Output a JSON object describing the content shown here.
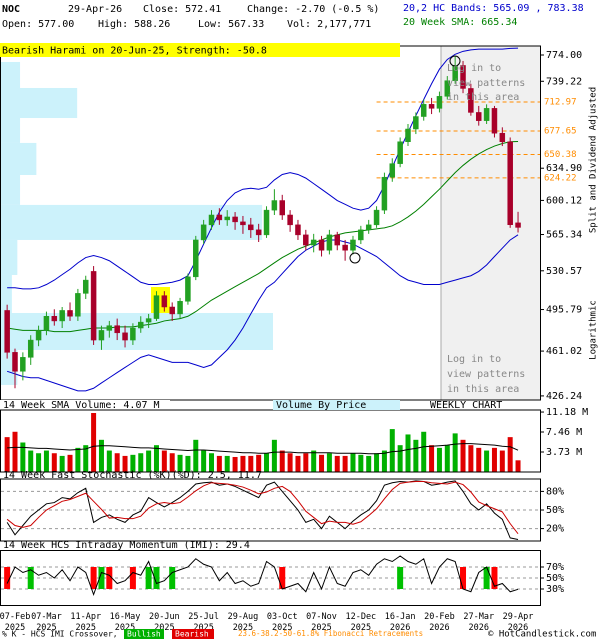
{
  "header": {
    "symbol": "NOC",
    "date": "29-Apr-26",
    "close": "Close: 572.41",
    "change": "Change: -2.70 (-0.5 %)",
    "bands": "20,2 HC Bands: 565.09 , 783.38",
    "open": "Open: 577.00",
    "high": "High: 588.26",
    "low": "Low: 567.33",
    "vol": "Vol: 2,177,771",
    "sma": "20 Week SMA: 665.34"
  },
  "footer": {
    "crossover": "% K - HCS IMI Crossover,",
    "bullish": "Bullish",
    "bearish": "Bearish",
    "fib": "23.6-38.2-50-61.8% Fibonacci Retracements",
    "copyright": "© HotCandlestick.com"
  },
  "chart_data": [
    {
      "type": "candlestick",
      "title": "Bearish Harami on 20-Jun-25, Strength: -50.8",
      "annotations": [
        [
          "Log in to",
          "view patterns",
          "in this area"
        ],
        [
          "Log in to",
          "view patterns",
          "in this area"
        ]
      ],
      "y_axis_labels": [
        "Split and Dividend Adjusted",
        "Logarithmic"
      ],
      "log": true,
      "ylim": [
        423.2,
        786.3
      ],
      "yticks": [
        {
          "value": 774,
          "label": "774.00"
        },
        {
          "value": 739.22,
          "label": "739.22"
        },
        {
          "value": 634.9,
          "label": "634.90"
        },
        {
          "value": 600.12,
          "label": "600.12"
        },
        {
          "value": 565.34,
          "label": "565.34"
        },
        {
          "value": 530.57,
          "label": "530.57"
        },
        {
          "value": 495.79,
          "label": "495.79"
        },
        {
          "value": 461.02,
          "label": "461.02"
        },
        {
          "value": 426.24,
          "label": "426.24"
        }
      ],
      "fib_levels": [
        712.97,
        677.65,
        650.38,
        624.22
      ],
      "fib_color": "#ff8c00",
      "categories": [
        null,
        "07-Feb 2025",
        null,
        null,
        null,
        "07-Mar 2025",
        null,
        null,
        null,
        null,
        "11-Apr 2025",
        null,
        null,
        null,
        null,
        "16-May 2025",
        null,
        null,
        null,
        null,
        "20-Jun 2025",
        null,
        null,
        null,
        null,
        "25-Jul 2025",
        null,
        null,
        null,
        null,
        "29-Aug 2025",
        null,
        null,
        null,
        null,
        "03-Oct 2025",
        null,
        null,
        null,
        null,
        "07-Nov 2025",
        null,
        null,
        null,
        null,
        "12-Dec 2025",
        null,
        null,
        null,
        null,
        "16-Jan 2026",
        null,
        null,
        null,
        null,
        "20-Feb 2026",
        null,
        null,
        null,
        null,
        "27-Mar 2026",
        null,
        null,
        null,
        null,
        "29-Apr 2026"
      ],
      "open": [
        495,
        460,
        445,
        456,
        470,
        478,
        490,
        486,
        495,
        490,
        510,
        530,
        470,
        478,
        482,
        476,
        470,
        480,
        485,
        488,
        508,
        498,
        492,
        503,
        525,
        560,
        575,
        585,
        580,
        583,
        578,
        575,
        570,
        565,
        590,
        600,
        585,
        575,
        565,
        555,
        560,
        550,
        565,
        555,
        550,
        560,
        570,
        575,
        590,
        625,
        640,
        665,
        680,
        695,
        710,
        705,
        720,
        740,
        760,
        730,
        700,
        690,
        705,
        675,
        665,
        577
      ],
      "high": [
        500,
        463,
        460,
        474,
        482,
        494,
        496,
        498,
        502,
        514,
        526,
        535,
        482,
        486,
        488,
        482,
        484,
        490,
        492,
        512,
        512,
        502,
        506,
        528,
        564,
        580,
        590,
        592,
        590,
        588,
        584,
        582,
        576,
        594,
        612,
        606,
        590,
        580,
        570,
        566,
        564,
        570,
        568,
        560,
        564,
        574,
        580,
        594,
        630,
        646,
        670,
        686,
        700,
        716,
        718,
        726,
        746,
        772,
        766,
        736,
        708,
        710,
        708,
        682,
        670,
        588.26
      ],
      "low": [
        455,
        432,
        438,
        450,
        465,
        474,
        482,
        480,
        486,
        486,
        505,
        466,
        462,
        472,
        470,
        464,
        466,
        476,
        480,
        486,
        494,
        486,
        488,
        500,
        522,
        556,
        570,
        575,
        574,
        570,
        566,
        562,
        558,
        562,
        585,
        580,
        568,
        560,
        550,
        548,
        544,
        546,
        550,
        540,
        546,
        556,
        566,
        572,
        586,
        620,
        636,
        660,
        674,
        690,
        698,
        700,
        716,
        736,
        724,
        696,
        684,
        686,
        670,
        660,
        572,
        567.33
      ],
      "close": [
        460,
        445,
        456,
        470,
        478,
        490,
        486,
        495,
        490,
        510,
        522,
        470,
        478,
        482,
        476,
        470,
        480,
        485,
        488,
        508,
        498,
        492,
        503,
        525,
        560,
        575,
        585,
        580,
        583,
        578,
        575,
        570,
        565,
        590,
        600,
        585,
        575,
        565,
        555,
        560,
        550,
        565,
        555,
        550,
        560,
        570,
        575,
        590,
        625,
        640,
        665,
        680,
        695,
        710,
        705,
        720,
        740,
        760,
        730,
        700,
        690,
        705,
        675,
        665,
        575.11,
        572.41
      ],
      "up_color": "#22a022",
      "down_color": "#a8002a",
      "series": [
        {
          "color": "#0000cc",
          "values": [
            515,
            515,
            514,
            514,
            515,
            518,
            522,
            527,
            532,
            538,
            543,
            545,
            543,
            540,
            535,
            530,
            525,
            520,
            518,
            518,
            519,
            520,
            522,
            526,
            540,
            556,
            572,
            588,
            600,
            608,
            612,
            613,
            612,
            614,
            622,
            628,
            630,
            628,
            624,
            618,
            612,
            606,
            600,
            596,
            592,
            590,
            592,
            600,
            616,
            636,
            656,
            676,
            696,
            716,
            736,
            755,
            768,
            775,
            779,
            781,
            782,
            782,
            782,
            782,
            783,
            783.38
          ]
        },
        {
          "color": "#0000cc",
          "values": [
            445,
            443,
            441,
            440,
            440,
            438,
            436,
            434,
            432,
            430,
            430,
            432,
            436,
            440,
            444,
            448,
            452,
            456,
            458,
            456,
            454,
            452,
            452,
            452,
            450,
            448,
            450,
            456,
            462,
            470,
            480,
            492,
            504,
            515,
            520,
            528,
            536,
            544,
            550,
            554,
            558,
            560,
            560,
            558,
            556,
            552,
            548,
            544,
            538,
            532,
            526,
            522,
            520,
            518,
            518,
            518,
            520,
            522,
            524,
            526,
            530,
            536,
            544,
            552,
            560,
            565.09
          ]
        },
        {
          "color": "#008000",
          "values": [
            480,
            479,
            478,
            478,
            478,
            478,
            477,
            477,
            477,
            478,
            479,
            480,
            480,
            480,
            481,
            481,
            481,
            482,
            483,
            484,
            486,
            487,
            488,
            490,
            494,
            499,
            504,
            508,
            512,
            516,
            520,
            524,
            528,
            533,
            538,
            543,
            547,
            551,
            554,
            557,
            560,
            563,
            565,
            567,
            568,
            569,
            570,
            571,
            572,
            574,
            578,
            583,
            589,
            596,
            604,
            612,
            621,
            630,
            638,
            645,
            651,
            656,
            660,
            663,
            665,
            665.34
          ]
        }
      ],
      "vbp_edges": [
        764.6,
        730.6,
        693.2,
        663.6,
        627.4,
        595.4,
        560,
        526.7,
        492.8,
        461.9,
        434.5
      ],
      "vbp_volumes": [
        7,
        28,
        7,
        13,
        7,
        96,
        6,
        4,
        100,
        6
      ],
      "vbp_color": "#ccf2fb"
    },
    {
      "type": "bar",
      "title": "14 Week SMA Volume: 4.07 M",
      "annotations": [
        "Volume By Price",
        "WEEKLY CHART"
      ],
      "ylim": [
        0,
        11.56
      ],
      "yticks": [
        {
          "value": 11.18,
          "label": "11.18 M"
        },
        {
          "value": 7.46,
          "label": "7.46 M"
        },
        {
          "value": 3.73,
          "label": "3.73 M"
        }
      ],
      "values": [
        6.5,
        7.5,
        5.5,
        4,
        3.5,
        4,
        3.5,
        3,
        3.2,
        4.5,
        5,
        11,
        6,
        4,
        3.5,
        3,
        3.2,
        3.5,
        4,
        5,
        4,
        3.5,
        3.2,
        3,
        6,
        4,
        3.5,
        3,
        3,
        2.8,
        3,
        3,
        3.2,
        3.5,
        6,
        4,
        3.5,
        3,
        3.5,
        4,
        3.2,
        3.5,
        3,
        3,
        3.5,
        3.2,
        3,
        3.5,
        4,
        8,
        5,
        7,
        6,
        7.5,
        5,
        4.5,
        5,
        7.2,
        6,
        5,
        4.5,
        4,
        4.5,
        4,
        6.5,
        2.177771
      ],
      "up_color": "#00b000",
      "down_color": "#e00000",
      "series": [
        {
          "color": "#000000",
          "values": [
            4.5,
            4.6,
            4.6,
            4.5,
            4.4,
            4.4,
            4.3,
            4.2,
            4.1,
            4.2,
            4.3,
            4.8,
            4.9,
            4.9,
            4.8,
            4.7,
            4.6,
            4.5,
            4.5,
            4.4,
            4.3,
            4.2,
            4.1,
            4,
            4.1,
            4.1,
            4,
            3.9,
            3.8,
            3.7,
            3.6,
            3.6,
            3.5,
            3.5,
            3.7,
            3.7,
            3.7,
            3.6,
            3.6,
            3.6,
            3.6,
            3.6,
            3.5,
            3.5,
            3.5,
            3.5,
            3.4,
            3.4,
            3.5,
            3.8,
            3.9,
            4.2,
            4.4,
            4.7,
            4.8,
            4.9,
            5,
            5.2,
            5.3,
            5.3,
            5.2,
            5.1,
            5,
            4.8,
            4.7,
            4.07
          ]
        }
      ]
    },
    {
      "type": "line",
      "title": "14 Week Fast Stochastic (%K)(%D): 2.5, 11.7",
      "grid": true,
      "ylim": [
        0,
        100
      ],
      "yticks": [
        {
          "value": 80,
          "label": "80%"
        },
        {
          "value": 50,
          "label": "50%"
        },
        {
          "value": 20,
          "label": "20%"
        }
      ],
      "series": [
        {
          "color": "#000000",
          "values": [
            30,
            10,
            25,
            40,
            50,
            60,
            62,
            70,
            68,
            78,
            85,
            30,
            38,
            42,
            35,
            30,
            42,
            48,
            70,
            62,
            55,
            62,
            70,
            80,
            92,
            94,
            95,
            90,
            92,
            88,
            82,
            76,
            70,
            90,
            95,
            80,
            65,
            50,
            30,
            35,
            20,
            40,
            30,
            20,
            32,
            42,
            50,
            65,
            90,
            94,
            96,
            95,
            97,
            96,
            90,
            92,
            95,
            97,
            80,
            60,
            50,
            60,
            45,
            35,
            5,
            2.5
          ]
        },
        {
          "color": "#cc0000",
          "values": [
            35,
            25,
            22,
            25,
            38,
            50,
            57,
            64,
            67,
            72,
            77,
            64,
            51,
            37,
            38,
            36,
            36,
            40,
            53,
            60,
            62,
            60,
            62,
            71,
            81,
            89,
            94,
            93,
            92,
            90,
            87,
            82,
            76,
            79,
            85,
            88,
            80,
            65,
            48,
            38,
            28,
            32,
            30,
            30,
            27,
            31,
            41,
            52,
            68,
            83,
            93,
            95,
            96,
            96,
            94,
            93,
            92,
            95,
            91,
            79,
            63,
            57,
            52,
            47,
            28,
            11.7
          ]
        }
      ]
    },
    {
      "type": "line",
      "title": "14 Week HCS Intraday Momentum (IMI): 29.4",
      "grid": true,
      "ylim": [
        0,
        100
      ],
      "yticks": [
        {
          "value": 70,
          "label": "70%"
        },
        {
          "value": 50,
          "label": "50%"
        },
        {
          "value": 30,
          "label": "30%"
        }
      ],
      "series": [
        {
          "color": "#000000",
          "values": [
            40,
            70,
            60,
            65,
            55,
            60,
            50,
            65,
            45,
            70,
            60,
            20,
            60,
            55,
            40,
            45,
            60,
            55,
            80,
            40,
            45,
            60,
            65,
            70,
            85,
            75,
            70,
            45,
            60,
            40,
            45,
            35,
            40,
            80,
            70,
            30,
            35,
            40,
            25,
            60,
            30,
            70,
            40,
            35,
            60,
            65,
            55,
            75,
            85,
            80,
            90,
            80,
            75,
            85,
            40,
            70,
            85,
            80,
            30,
            25,
            60,
            70,
            35,
            40,
            25,
            29.4
          ]
        }
      ],
      "signals": [
        "Bearish",
        null,
        null,
        "Bullish",
        null,
        null,
        null,
        null,
        null,
        null,
        null,
        "Bearish",
        "Bullish",
        "Bearish",
        null,
        null,
        "Bearish",
        null,
        "Bullish",
        "Bullish",
        null,
        "Bullish",
        null,
        null,
        null,
        null,
        null,
        null,
        null,
        null,
        null,
        null,
        null,
        null,
        null,
        "Bearish",
        null,
        null,
        null,
        null,
        null,
        null,
        null,
        null,
        null,
        null,
        null,
        null,
        null,
        null,
        "Bullish",
        null,
        null,
        null,
        null,
        null,
        null,
        null,
        "Bearish",
        null,
        null,
        "Bullish",
        "Bearish",
        null,
        null,
        null
      ],
      "signal_colors": {
        "Bullish": "#00c000",
        "Bearish": "#ff0000"
      }
    }
  ]
}
